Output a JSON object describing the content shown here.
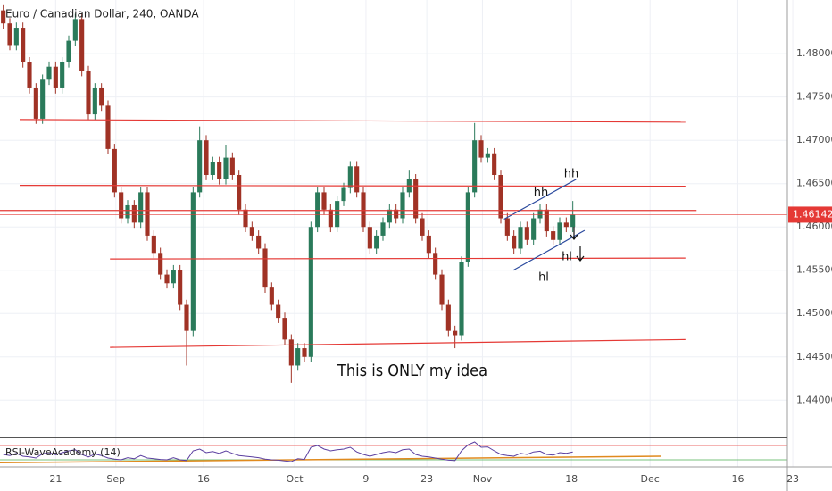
{
  "chart_data": [
    {
      "type": "candlestick",
      "title": "Euro / Canadian Dollar, 240, OANDA",
      "open": [
        1.485,
        1.4835,
        1.481,
        1.483,
        1.479,
        1.476,
        1.4725,
        1.477,
        1.4785,
        1.476,
        1.479,
        1.4815,
        1.484,
        1.478,
        1.473,
        1.476,
        1.474,
        1.469,
        1.464,
        1.461,
        1.4625,
        1.4605,
        1.464,
        1.459,
        1.457,
        1.4545,
        1.4535,
        1.455,
        1.451,
        1.448,
        1.464,
        1.47,
        1.466,
        1.4675,
        1.4655,
        1.468,
        1.466,
        1.462,
        1.46,
        1.459,
        1.4575,
        1.453,
        1.451,
        1.4495,
        1.447,
        1.444,
        1.446,
        1.445,
        1.46,
        1.464,
        1.462,
        1.46,
        1.463,
        1.4645,
        1.467,
        1.464,
        1.46,
        1.4575,
        1.459,
        1.4605,
        1.462,
        1.461,
        1.464,
        1.4655,
        1.461,
        1.459,
        1.457,
        1.4545,
        1.451,
        1.448,
        1.4475,
        1.456,
        1.464,
        1.47,
        1.468,
        1.4685,
        1.466,
        1.461,
        1.459,
        1.4575,
        1.46,
        1.4585,
        1.461,
        1.462,
        1.4595,
        1.4585,
        1.4605,
        1.46
      ],
      "high": [
        1.4856,
        1.4841,
        1.4836,
        1.4836,
        1.4796,
        1.4766,
        1.4776,
        1.4791,
        1.4791,
        1.4796,
        1.4821,
        1.4846,
        1.4846,
        1.4786,
        1.4766,
        1.4766,
        1.4746,
        1.4696,
        1.4646,
        1.4631,
        1.4631,
        1.4646,
        1.4646,
        1.4596,
        1.4576,
        1.4551,
        1.4556,
        1.4556,
        1.4516,
        1.4646,
        1.4716,
        1.4706,
        1.4681,
        1.4681,
        1.4695,
        1.4686,
        1.4666,
        1.4626,
        1.4606,
        1.4596,
        1.4581,
        1.4536,
        1.4516,
        1.4501,
        1.4476,
        1.4466,
        1.4466,
        1.4606,
        1.4646,
        1.4646,
        1.4626,
        1.4636,
        1.4651,
        1.4676,
        1.4676,
        1.4646,
        1.4606,
        1.4596,
        1.4611,
        1.4626,
        1.4626,
        1.4646,
        1.4666,
        1.4661,
        1.4616,
        1.4596,
        1.4576,
        1.4551,
        1.4516,
        1.4486,
        1.4566,
        1.4646,
        1.472,
        1.4706,
        1.4691,
        1.4691,
        1.4666,
        1.4616,
        1.4596,
        1.4606,
        1.4606,
        1.4616,
        1.4626,
        1.4626,
        1.4601,
        1.4611,
        1.4611,
        1.463
      ],
      "low": [
        1.4829,
        1.4804,
        1.4804,
        1.4784,
        1.4754,
        1.4719,
        1.4719,
        1.4764,
        1.4754,
        1.4754,
        1.4784,
        1.4809,
        1.4774,
        1.4724,
        1.4724,
        1.4734,
        1.4684,
        1.4634,
        1.4604,
        1.4604,
        1.4599,
        1.4599,
        1.4584,
        1.4564,
        1.4539,
        1.4529,
        1.4529,
        1.4504,
        1.444,
        1.4474,
        1.4634,
        1.4654,
        1.4654,
        1.4649,
        1.4649,
        1.4654,
        1.4614,
        1.4594,
        1.4584,
        1.4569,
        1.4524,
        1.4504,
        1.4489,
        1.4464,
        1.442,
        1.4434,
        1.4444,
        1.4444,
        1.4594,
        1.4614,
        1.4594,
        1.4594,
        1.4624,
        1.4639,
        1.4634,
        1.4594,
        1.4569,
        1.4569,
        1.4584,
        1.4599,
        1.4604,
        1.4604,
        1.4634,
        1.4604,
        1.4584,
        1.4564,
        1.4539,
        1.4504,
        1.4474,
        1.446,
        1.4469,
        1.4554,
        1.4634,
        1.4674,
        1.4674,
        1.4654,
        1.4604,
        1.4584,
        1.4569,
        1.4569,
        1.4579,
        1.4579,
        1.4604,
        1.4589,
        1.4579,
        1.4579,
        1.4594,
        1.4594
      ],
      "close": [
        1.4835,
        1.481,
        1.483,
        1.479,
        1.476,
        1.4725,
        1.477,
        1.4785,
        1.476,
        1.479,
        1.4815,
        1.484,
        1.478,
        1.473,
        1.476,
        1.474,
        1.469,
        1.464,
        1.461,
        1.4625,
        1.4605,
        1.464,
        1.459,
        1.457,
        1.4545,
        1.4535,
        1.455,
        1.451,
        1.448,
        1.464,
        1.47,
        1.466,
        1.4675,
        1.4655,
        1.468,
        1.466,
        1.462,
        1.46,
        1.459,
        1.4575,
        1.453,
        1.451,
        1.4495,
        1.447,
        1.444,
        1.446,
        1.445,
        1.46,
        1.464,
        1.462,
        1.46,
        1.463,
        1.4645,
        1.467,
        1.464,
        1.46,
        1.4575,
        1.459,
        1.4605,
        1.462,
        1.461,
        1.464,
        1.4655,
        1.461,
        1.459,
        1.457,
        1.4545,
        1.451,
        1.448,
        1.4475,
        1.456,
        1.464,
        1.47,
        1.468,
        1.4685,
        1.466,
        1.461,
        1.459,
        1.4575,
        1.46,
        1.4585,
        1.461,
        1.462,
        1.4595,
        1.4585,
        1.4605,
        1.46,
        1.4614
      ],
      "up_color": "#2a7a5a",
      "down_color": "#a03225",
      "ylim": [
        1.4357,
        1.4862
      ],
      "yticks": [
        {
          "value": 1.44,
          "label": "1.44000"
        },
        {
          "value": 1.445,
          "label": "1.44500"
        },
        {
          "value": 1.45,
          "label": "1.45000"
        },
        {
          "value": 1.455,
          "label": "1.45500"
        },
        {
          "value": 1.46,
          "label": "1.46000"
        },
        {
          "value": 1.465,
          "label": "1.46500"
        },
        {
          "value": 1.47,
          "label": "1.47000"
        },
        {
          "value": 1.475,
          "label": "1.47500"
        },
        {
          "value": 1.48,
          "label": "1.48000"
        }
      ],
      "xlim": [
        0,
        120
      ],
      "xticks": [
        {
          "value": 8.5,
          "label": "21"
        },
        {
          "value": 17.7,
          "label": "Sep"
        },
        {
          "value": 31.1,
          "label": "16"
        },
        {
          "value": 45,
          "label": "Oct"
        },
        {
          "value": 55.9,
          "label": "9"
        },
        {
          "value": 65.2,
          "label": "23"
        },
        {
          "value": 73.7,
          "label": "Nov"
        },
        {
          "value": 87.3,
          "label": "18"
        },
        {
          "value": 99.3,
          "label": "Dec"
        },
        {
          "value": 112.7,
          "label": "16"
        },
        {
          "value": 121.1,
          "label": "23"
        }
      ],
      "grid": true,
      "last_price": 1.46142,
      "last_price_color": "#e53935",
      "lines": [
        {
          "color": "#e53935",
          "x": [
            3.0,
            104.7
          ],
          "y": [
            1.4724,
            1.4721
          ]
        },
        {
          "color": "#e53935",
          "x": [
            3.0,
            104.7
          ],
          "y": [
            1.4648,
            1.4647
          ]
        },
        {
          "color": "#e53935",
          "x": [
            0,
            106.4
          ],
          "y": [
            1.4619,
            1.4619
          ]
        },
        {
          "color": "#e53935",
          "x": [
            16.8,
            104.7
          ],
          "y": [
            1.4563,
            1.4564
          ]
        },
        {
          "color": "#e53935",
          "x": [
            16.8,
            104.7
          ],
          "y": [
            1.4461,
            1.447
          ]
        },
        {
          "color": "#2b4a9e",
          "x": [
            77.0,
            88.0
          ],
          "y": [
            1.4609,
            1.4655
          ]
        },
        {
          "color": "#2b4a9e",
          "x": [
            78.4,
            89.3
          ],
          "y": [
            1.455,
            1.4596
          ]
        }
      ],
      "annotations": [
        "hh",
        "hh",
        "hl",
        "hl",
        "This is ONLY my idea"
      ]
    },
    {
      "type": "line",
      "title": "RSI-WaveAcademy (14)",
      "color": "#5b3fa0",
      "values": [
        45,
        42,
        48,
        40,
        38,
        35,
        47,
        50,
        44,
        50,
        55,
        58,
        45,
        38,
        46,
        42,
        35,
        32,
        30,
        36,
        33,
        42,
        35,
        33,
        31,
        30,
        36,
        30,
        28,
        55,
        60,
        50,
        53,
        48,
        55,
        48,
        42,
        40,
        38,
        36,
        32,
        30,
        29,
        27,
        25,
        33,
        31,
        65,
        70,
        60,
        55,
        58,
        60,
        65,
        52,
        45,
        40,
        45,
        50,
        53,
        50,
        58,
        60,
        45,
        40,
        38,
        35,
        32,
        29,
        28,
        55,
        72,
        80,
        65,
        66,
        55,
        45,
        42,
        40,
        48,
        45,
        52,
        54,
        45,
        43,
        50,
        48,
        52
      ],
      "ylim": [
        10,
        90
      ],
      "levels": [
        {
          "value": 70,
          "color": "#e53935"
        },
        {
          "value": 30,
          "color": "#4caf50"
        }
      ],
      "trend": {
        "color": "#e08a1e",
        "x": [
          0,
          101
        ],
        "y": [
          22,
          40
        ]
      }
    }
  ]
}
